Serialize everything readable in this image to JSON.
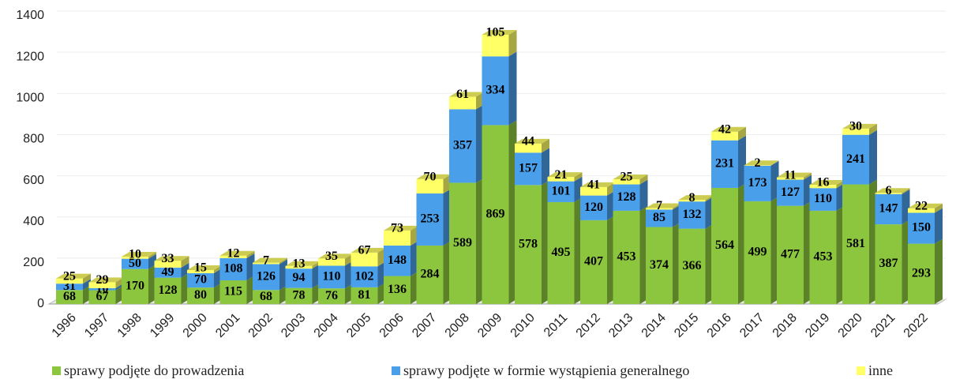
{
  "chart_data": {
    "type": "bar3d-stacked",
    "categories": [
      "1996",
      "1997",
      "1998",
      "1999",
      "2000",
      "2001",
      "2002",
      "2003",
      "2004",
      "2005",
      "2006",
      "2007",
      "2008",
      "2009",
      "2010",
      "2011",
      "2012",
      "2013",
      "2014",
      "2015",
      "2016",
      "2017",
      "2018",
      "2019",
      "2020",
      "2021",
      "2022"
    ],
    "series": [
      {
        "name": "sprawy podjęte do prowadzenia",
        "color": "#8cc63f",
        "values": [
          68,
          67,
          170,
          128,
          80,
          115,
          68,
          78,
          76,
          81,
          136,
          284,
          589,
          869,
          578,
          495,
          407,
          453,
          374,
          366,
          564,
          499,
          477,
          453,
          581,
          387,
          293
        ]
      },
      {
        "name": "sprawy podjęte w formie wystąpienia generalnego",
        "color": "#4a9fea",
        "values": [
          31,
          10,
          50,
          49,
          70,
          108,
          126,
          94,
          110,
          102,
          148,
          253,
          357,
          334,
          157,
          101,
          120,
          128,
          85,
          132,
          231,
          173,
          127,
          110,
          241,
          147,
          150
        ]
      },
      {
        "name": "inne",
        "color": "#ffff66",
        "values": [
          25,
          29,
          10,
          33,
          15,
          12,
          7,
          13,
          35,
          67,
          73,
          70,
          61,
          105,
          44,
          21,
          41,
          25,
          7,
          8,
          42,
          2,
          11,
          16,
          30,
          6,
          22
        ]
      }
    ],
    "ylim": [
      0,
      1400
    ],
    "yticks": [
      0,
      200,
      400,
      600,
      800,
      1000,
      1200,
      1400
    ],
    "grid": true,
    "legend": "bottom"
  }
}
